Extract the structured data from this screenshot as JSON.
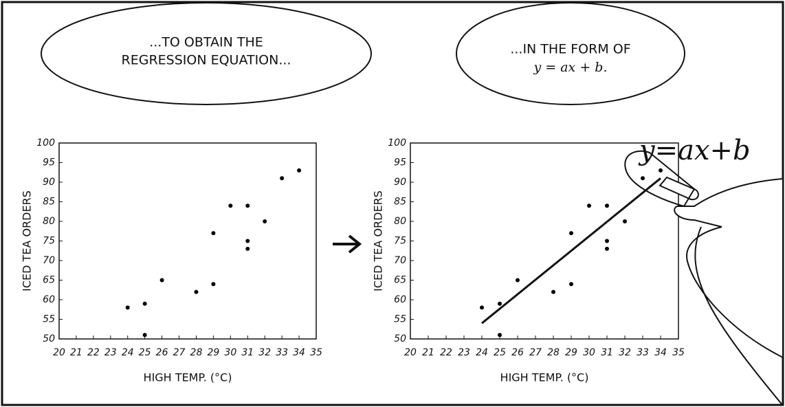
{
  "bubbles": [
    {
      "lines": [
        "...TO OBTAIN THE",
        "REGRESSION EQUATION..."
      ]
    },
    {
      "lines": [
        "...IN THE FORM OF",
        "y = ax + b."
      ]
    }
  ],
  "chart_data": [
    {
      "type": "scatter",
      "x": [
        24,
        25,
        25,
        26,
        28,
        29,
        29,
        30,
        31,
        31,
        31,
        32,
        33,
        34
      ],
      "values": [
        58,
        59,
        51,
        65,
        62,
        77,
        64,
        84,
        84,
        75,
        73,
        80,
        91,
        93
      ],
      "color": "#000",
      "xlabel": "HIGH TEMP. (°C)",
      "ylabel": "ICED TEA ORDERS",
      "xlim": [
        20,
        35
      ],
      "ylim": [
        50,
        100
      ],
      "xticks": [
        20,
        21,
        22,
        23,
        24,
        25,
        26,
        27,
        28,
        29,
        30,
        31,
        32,
        33,
        34,
        35
      ],
      "yticks": [
        50,
        55,
        60,
        65,
        70,
        75,
        80,
        85,
        90,
        95,
        100
      ]
    },
    {
      "type": "scatter",
      "x": [
        24,
        25,
        25,
        26,
        28,
        29,
        29,
        30,
        31,
        31,
        31,
        32,
        33,
        34
      ],
      "values": [
        58,
        59,
        51,
        65,
        62,
        77,
        64,
        84,
        84,
        75,
        73,
        80,
        91,
        93
      ],
      "color": "#000",
      "xlabel": "HIGH TEMP. (°C)",
      "ylabel": "ICED TEA ORDERS",
      "xlim": [
        20,
        35
      ],
      "ylim": [
        50,
        100
      ],
      "xticks": [
        20,
        21,
        22,
        23,
        24,
        25,
        26,
        27,
        28,
        29,
        30,
        31,
        32,
        33,
        34,
        35
      ],
      "yticks": [
        50,
        55,
        60,
        65,
        70,
        75,
        80,
        85,
        90,
        95,
        100
      ],
      "line": {
        "x": [
          24,
          34
        ],
        "values": [
          54,
          91
        ]
      },
      "annotation": "y=ax+b"
    }
  ]
}
